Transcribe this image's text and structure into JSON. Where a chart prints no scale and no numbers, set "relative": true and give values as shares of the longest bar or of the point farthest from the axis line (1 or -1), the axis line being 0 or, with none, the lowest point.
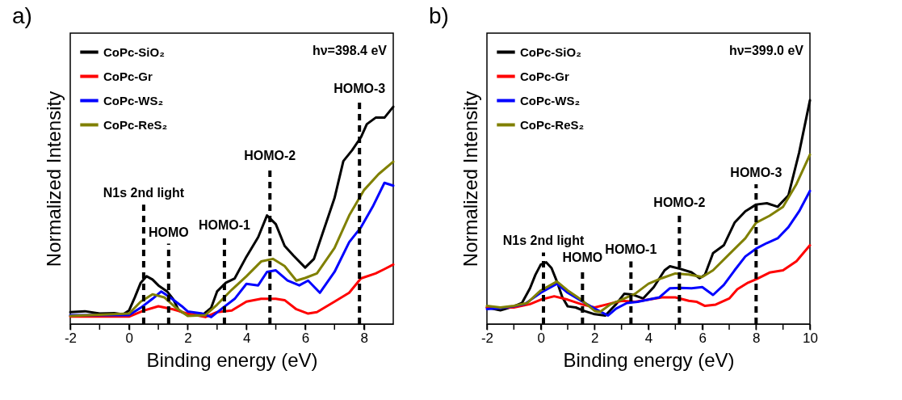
{
  "chart_data": [
    {
      "type": "line",
      "title": "a)",
      "xlabel": "Binding energy (eV)",
      "ylabel": "Normalized Intensity",
      "relative": true,
      "legend": "top left",
      "line_style": "solid",
      "xlim": [
        -2,
        9
      ],
      "xticks": [
        -2,
        {
          "value": -1,
          "label": null
        },
        0,
        {
          "value": 1,
          "label": null
        },
        2,
        {
          "value": 3,
          "label": null
        },
        4,
        {
          "value": 5,
          "label": null
        },
        6,
        {
          "value": 7,
          "label": null
        },
        8
      ],
      "series": [
        {
          "name": "CoPc-SiO₂",
          "color": "#000000",
          "x": [
            -2,
            -1.5,
            -1,
            -0.5,
            -0.2,
            0,
            0.2,
            0.4,
            0.6,
            0.8,
            1.0,
            1.3,
            1.5,
            1.7,
            2,
            2.5,
            2.8,
            3.0,
            3.3,
            3.6,
            4.0,
            4.4,
            4.7,
            5.0,
            5.3,
            5.6,
            6.0,
            6.3,
            6.6,
            7.0,
            7.3,
            7.6,
            7.9,
            8.1,
            8.4,
            8.7,
            9.0
          ],
          "values": [
            0.055,
            0.059,
            0.048,
            0.05,
            0.045,
            0.062,
            0.123,
            0.19,
            0.22,
            0.205,
            0.178,
            0.15,
            0.116,
            0.062,
            0.041,
            0.041,
            0.075,
            0.15,
            0.19,
            0.21,
            0.31,
            0.4,
            0.5,
            0.46,
            0.36,
            0.315,
            0.26,
            0.3,
            0.42,
            0.58,
            0.75,
            0.8,
            0.86,
            0.92,
            0.95,
            0.95,
            1.0
          ]
        },
        {
          "name": "CoPc-Gr",
          "color": "#ff0000",
          "x": [
            -2,
            0,
            0.5,
            1.0,
            1.5,
            2.0,
            2.6,
            3.0,
            3.5,
            4.0,
            4.5,
            5.0,
            5.3,
            5.7,
            6.1,
            6.4,
            7.0,
            7.5,
            7.9,
            8.4,
            8.7,
            9.0
          ],
          "values": [
            0.034,
            0.034,
            0.062,
            0.082,
            0.068,
            0.048,
            0.032,
            0.055,
            0.062,
            0.103,
            0.116,
            0.116,
            0.11,
            0.068,
            0.048,
            0.055,
            0.103,
            0.144,
            0.21,
            0.233,
            0.253,
            0.274
          ]
        },
        {
          "name": "CoPc-WS₂",
          "color": "#0000ff",
          "x": [
            -2,
            0,
            0.4,
            0.8,
            1.1,
            1.4,
            1.8,
            2.0,
            2.5,
            2.8,
            3.2,
            3.6,
            4.0,
            4.4,
            4.7,
            5.0,
            5.4,
            5.8,
            6.1,
            6.5,
            7.0,
            7.5,
            7.9,
            8.3,
            8.7,
            9.0
          ],
          "values": [
            0.041,
            0.041,
            0.075,
            0.116,
            0.15,
            0.123,
            0.082,
            0.058,
            0.048,
            0.032,
            0.075,
            0.116,
            0.185,
            0.178,
            0.24,
            0.247,
            0.2,
            0.178,
            0.2,
            0.144,
            0.24,
            0.377,
            0.445,
            0.54,
            0.65,
            0.637
          ]
        },
        {
          "name": "CoPc-ReS₂",
          "color": "#808000",
          "x": [
            -2,
            0,
            0.4,
            0.8,
            1.2,
            1.6,
            2.0,
            2.6,
            3.0,
            3.5,
            4.0,
            4.5,
            4.9,
            5.3,
            5.7,
            6.0,
            6.4,
            7.0,
            7.5,
            8.0,
            8.5,
            9.0
          ],
          "values": [
            0.037,
            0.048,
            0.103,
            0.137,
            0.123,
            0.075,
            0.037,
            0.041,
            0.089,
            0.158,
            0.22,
            0.288,
            0.3,
            0.267,
            0.2,
            0.212,
            0.233,
            0.35,
            0.5,
            0.616,
            0.69,
            0.747
          ]
        }
      ],
      "ref_lines": [
        {
          "axis": "x",
          "value": 0.5,
          "line_style": "dashed",
          "color": "#000000"
        },
        {
          "axis": "x",
          "value": 1.35,
          "line_style": "dashed",
          "color": "#000000"
        },
        {
          "axis": "x",
          "value": 3.25,
          "line_style": "dashed",
          "color": "#000000"
        },
        {
          "axis": "x",
          "value": 4.8,
          "line_style": "dashed",
          "color": "#000000"
        },
        {
          "axis": "x",
          "value": 7.85,
          "line_style": "dashed",
          "color": "#000000"
        }
      ],
      "annotations": [
        "hν=398.4 eV",
        {
          "text": "N1s 2nd light",
          "x": 0.5,
          "y": 0.55
        },
        {
          "text": "HOMO",
          "x": 1.35,
          "y": 0.37
        },
        {
          "text": "HOMO-1",
          "x": 3.25,
          "y": 0.4
        },
        {
          "text": "HOMO-2",
          "x": 4.8,
          "y": 0.72
        },
        {
          "text": "HOMO-3",
          "x": 7.85,
          "y": 1.03
        }
      ]
    },
    {
      "type": "line",
      "title": "b)",
      "xlabel": "Binding energy (eV)",
      "ylabel": "Normalized Intensity",
      "relative": true,
      "legend": "top left",
      "line_style": "solid",
      "xlim": [
        -2,
        10
      ],
      "xticks": [
        -2,
        {
          "value": -1,
          "label": null
        },
        0,
        {
          "value": 1,
          "label": null
        },
        2,
        {
          "value": 3,
          "label": null
        },
        4,
        {
          "value": 5,
          "label": null
        },
        6,
        {
          "value": 7,
          "label": null
        },
        8,
        {
          "value": 9,
          "label": null
        },
        10
      ],
      "series": [
        {
          "name": "CoPc-SiO₂",
          "color": "#000000",
          "x": [
            -2,
            -1.5,
            -1,
            -0.7,
            -0.4,
            -0.2,
            0,
            0.2,
            0.4,
            0.6,
            0.8,
            1.0,
            1.3,
            1.6,
            2.0,
            2.4,
            2.8,
            3.1,
            3.4,
            3.8,
            4.2,
            4.6,
            4.8,
            5.2,
            5.6,
            5.9,
            6.1,
            6.4,
            6.8,
            7.2,
            7.6,
            8.0,
            8.4,
            8.8,
            9.2,
            9.6,
            10
          ],
          "values": [
            0.074,
            0.061,
            0.079,
            0.094,
            0.16,
            0.22,
            0.266,
            0.276,
            0.25,
            0.19,
            0.12,
            0.079,
            0.074,
            0.059,
            0.044,
            0.038,
            0.089,
            0.135,
            0.132,
            0.114,
            0.165,
            0.24,
            0.258,
            0.246,
            0.231,
            0.205,
            0.22,
            0.317,
            0.352,
            0.453,
            0.504,
            0.534,
            0.54,
            0.524,
            0.575,
            0.767,
            1.0
          ]
        },
        {
          "name": "CoPc-Gr",
          "color": "#ff0000",
          "x": [
            -2,
            -1,
            -0.4,
            0,
            0.5,
            1.0,
            1.5,
            2.0,
            2.5,
            3.0,
            3.5,
            4.0,
            4.5,
            5.0,
            5.5,
            5.8,
            6.1,
            6.5,
            7.0,
            7.3,
            7.7,
            8.0,
            8.5,
            9.0,
            9.5,
            10
          ],
          "values": [
            0.074,
            0.074,
            0.089,
            0.109,
            0.124,
            0.109,
            0.089,
            0.074,
            0.089,
            0.104,
            0.099,
            0.109,
            0.119,
            0.119,
            0.104,
            0.099,
            0.081,
            0.087,
            0.114,
            0.155,
            0.185,
            0.2,
            0.23,
            0.24,
            0.281,
            0.352
          ]
        },
        {
          "name": "CoPc-WS₂",
          "color": "#0000ff",
          "x": [
            -2,
            -1.5,
            -1,
            -0.6,
            0,
            0.6,
            1.0,
            1.5,
            2.0,
            2.5,
            2.8,
            3.2,
            3.6,
            4.0,
            4.4,
            4.8,
            5.2,
            5.6,
            6.0,
            6.4,
            6.8,
            7.2,
            7.6,
            8.0,
            8.4,
            8.8,
            9.2,
            9.6,
            10
          ],
          "values": [
            0.067,
            0.071,
            0.079,
            0.089,
            0.14,
            0.18,
            0.14,
            0.104,
            0.069,
            0.038,
            0.069,
            0.094,
            0.099,
            0.109,
            0.119,
            0.16,
            0.162,
            0.16,
            0.165,
            0.13,
            0.175,
            0.24,
            0.302,
            0.337,
            0.362,
            0.383,
            0.433,
            0.504,
            0.595
          ]
        },
        {
          "name": "CoPc-ReS₂",
          "color": "#808000",
          "x": [
            -2,
            -1.5,
            -1,
            -0.5,
            0,
            0.6,
            1.0,
            1.5,
            2.0,
            2.2,
            2.6,
            3.0,
            3.5,
            4.0,
            4.5,
            5.0,
            5.5,
            6.0,
            6.4,
            7.0,
            7.6,
            8.0,
            8.5,
            9.0,
            9.5,
            10
          ],
          "values": [
            0.081,
            0.074,
            0.081,
            0.094,
            0.15,
            0.19,
            0.15,
            0.109,
            0.059,
            0.054,
            0.089,
            0.109,
            0.135,
            0.18,
            0.205,
            0.226,
            0.221,
            0.21,
            0.24,
            0.312,
            0.383,
            0.453,
            0.484,
            0.524,
            0.626,
            0.757
          ]
        }
      ],
      "ref_lines": [
        {
          "axis": "x",
          "value": 0.1,
          "line_style": "dashed",
          "color": "#000000"
        },
        {
          "axis": "x",
          "value": 1.55,
          "line_style": "dashed",
          "color": "#000000"
        },
        {
          "axis": "x",
          "value": 3.35,
          "line_style": "dashed",
          "color": "#000000"
        },
        {
          "axis": "x",
          "value": 5.15,
          "line_style": "dashed",
          "color": "#000000"
        },
        {
          "axis": "x",
          "value": 8.0,
          "line_style": "dashed",
          "color": "#000000"
        }
      ],
      "annotations": [
        "hν=399.0 eV",
        {
          "text": "N1s 2nd light",
          "x": 0.1,
          "y": 0.32
        },
        {
          "text": "HOMO",
          "x": 1.55,
          "y": 0.246
        },
        {
          "text": "HOMO-1",
          "x": 3.35,
          "y": 0.28
        },
        {
          "text": "HOMO-2",
          "x": 5.15,
          "y": 0.49
        },
        {
          "text": "HOMO-3",
          "x": 8.0,
          "y": 0.625
        }
      ]
    }
  ]
}
